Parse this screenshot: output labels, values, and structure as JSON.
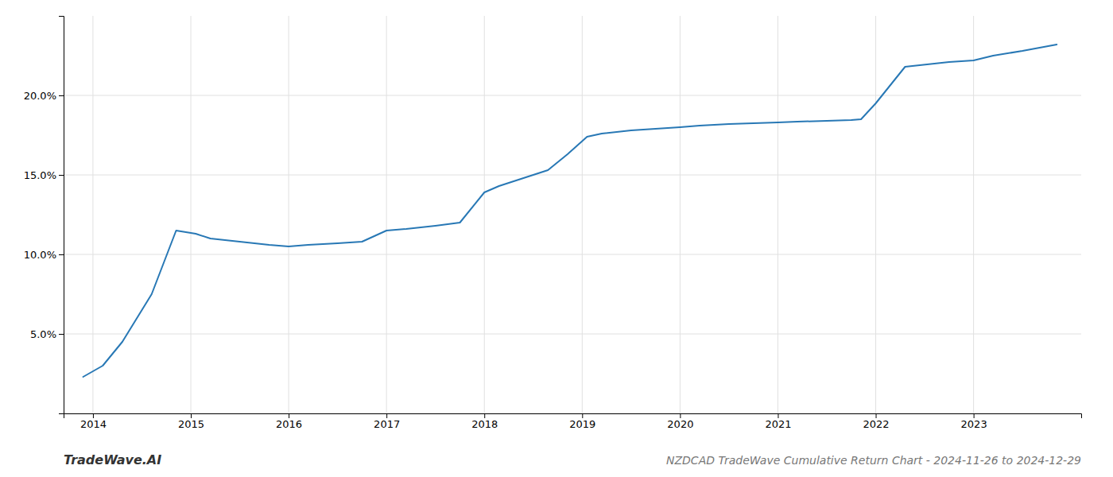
{
  "chart_data": {
    "type": "line",
    "title": "NZDCAD TradeWave Cumulative Return Chart - 2024-11-26 to 2024-12-29",
    "annotations": [
      "TradeWave.AI"
    ],
    "x": [
      2013.9,
      2014.1,
      2014.3,
      2014.6,
      2014.85,
      2015.05,
      2015.2,
      2015.5,
      2015.8,
      2016.0,
      2016.2,
      2016.5,
      2016.75,
      2017.0,
      2017.2,
      2017.5,
      2017.75,
      2018.0,
      2018.15,
      2018.4,
      2018.65,
      2018.85,
      2019.05,
      2019.2,
      2019.5,
      2019.75,
      2020.0,
      2020.2,
      2020.5,
      2020.75,
      2021.0,
      2021.2,
      2021.5,
      2021.75,
      2021.85,
      2022.0,
      2022.3,
      2022.6,
      2022.75,
      2023.0,
      2023.2,
      2023.5,
      2023.85
    ],
    "values": [
      2.3,
      3.0,
      4.5,
      7.5,
      11.5,
      11.3,
      11.0,
      10.8,
      10.6,
      10.5,
      10.6,
      10.7,
      10.8,
      11.5,
      11.6,
      11.8,
      12.0,
      13.9,
      14.3,
      14.8,
      15.3,
      16.3,
      17.4,
      17.6,
      17.8,
      17.9,
      18.0,
      18.1,
      18.2,
      18.25,
      18.3,
      18.35,
      18.4,
      18.45,
      18.5,
      19.5,
      21.8,
      22.0,
      22.1,
      22.2,
      22.5,
      22.8,
      23.2
    ],
    "color": "#2878b5",
    "xlim": [
      2013.7,
      2024.1
    ],
    "ylim": [
      0,
      25
    ],
    "xticks": [
      2014,
      2015,
      2016,
      2017,
      2018,
      2019,
      2020,
      2021,
      2022,
      2023
    ],
    "yticks": [
      {
        "value": 5.0,
        "label": "5.0%"
      },
      {
        "value": 10.0,
        "label": "10.0%"
      },
      {
        "value": 15.0,
        "label": "15.0%"
      },
      {
        "value": 20.0,
        "label": "20.0%"
      }
    ],
    "grid": true
  }
}
